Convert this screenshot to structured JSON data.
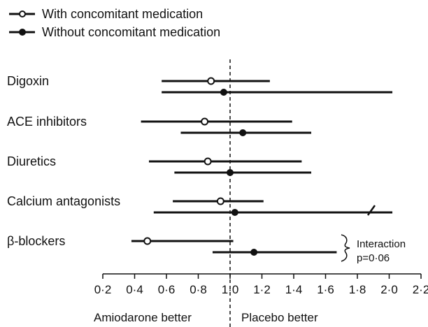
{
  "chart_data": {
    "type": "forest",
    "x_scale": "log",
    "xlim": [
      0.2,
      2.2
    ],
    "xticks": [
      0.2,
      0.4,
      0.6,
      0.8,
      1.0,
      1.2,
      1.4,
      1.6,
      1.8,
      2.0,
      2.2
    ],
    "xtick_labels": [
      "0·2",
      "0·4",
      "0·6",
      "0·8",
      "1·0",
      "1·2",
      "1·4",
      "1·6",
      "1·8",
      "2·0",
      "2·2"
    ],
    "reference_line": 1.0,
    "direction_labels": {
      "left": "Amiodarone better",
      "right": "Placebo better"
    },
    "legend_position": "top-left",
    "series": [
      {
        "name": "With concomitant medication",
        "marker": "open-circle"
      },
      {
        "name": "Without concomitant medication",
        "marker": "filled-circle"
      }
    ],
    "categories": [
      "Digoxin",
      "ACE inhibitors",
      "Diuretics",
      "Calcium antagonists",
      "β-blockers"
    ],
    "rows": [
      {
        "category": "Digoxin",
        "with": {
          "estimate": 0.88,
          "lower": 0.57,
          "upper": 1.25
        },
        "without": {
          "estimate": 0.96,
          "lower": 0.57,
          "upper": 2.02
        }
      },
      {
        "category": "ACE inhibitors",
        "with": {
          "estimate": 0.84,
          "lower": 0.44,
          "upper": 1.39
        },
        "without": {
          "estimate": 1.08,
          "lower": 0.69,
          "upper": 1.51
        }
      },
      {
        "category": "Diuretics",
        "with": {
          "estimate": 0.86,
          "lower": 0.49,
          "upper": 1.45
        },
        "without": {
          "estimate": 1.0,
          "lower": 0.65,
          "upper": 1.51
        }
      },
      {
        "category": "Calcium antagonists",
        "with": {
          "estimate": 0.94,
          "lower": 0.64,
          "upper": 1.21
        },
        "without": {
          "estimate": 1.03,
          "lower": 0.52,
          "upper": 2.02,
          "axis_break_at": 1.92
        }
      },
      {
        "category": "β-blockers",
        "with": {
          "estimate": 0.48,
          "lower": 0.38,
          "upper": 1.02
        },
        "without": {
          "estimate": 1.15,
          "lower": 0.89,
          "upper": 1.67
        }
      }
    ],
    "annotation": {
      "lines": [
        "Interaction",
        "p=0·06"
      ],
      "applies_to": "β-blockers"
    }
  }
}
